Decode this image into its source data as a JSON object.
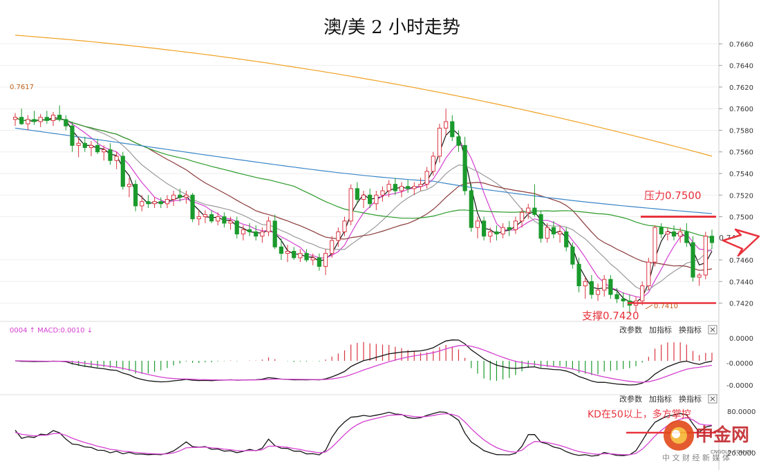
{
  "chart_data": [
    {
      "type": "candlestick",
      "title": "澳/美 2 小时走势",
      "y_axis": {
        "ticks": [
          "0.7660",
          "0.7640",
          "0.7620",
          "0.7600",
          "0.7580",
          "0.7560",
          "0.7540",
          "0.7520",
          "0.7500",
          "0.7460",
          "0.7440",
          "0.7420"
        ],
        "ylim": [
          0.7405,
          0.7675
        ]
      },
      "left_price_label": "0.7617",
      "annotations": {
        "resistance": {
          "label": "压力0.7500",
          "value": 0.75
        },
        "support": {
          "label": "支撑0.7420",
          "value": 0.742
        },
        "low_marker": "0.7410",
        "right_label_partial": "0.74"
      },
      "candles": [
        [
          0.759,
          0.7596,
          0.7584,
          0.7592
        ],
        [
          0.7592,
          0.76,
          0.7585,
          0.7586
        ],
        [
          0.7586,
          0.7594,
          0.758,
          0.759
        ],
        [
          0.759,
          0.7598,
          0.7585,
          0.7588
        ],
        [
          0.7588,
          0.7595,
          0.7583,
          0.7592
        ],
        [
          0.7592,
          0.7598,
          0.7586,
          0.7589
        ],
        [
          0.7589,
          0.7597,
          0.7584,
          0.7594
        ],
        [
          0.7594,
          0.7603,
          0.7588,
          0.759
        ],
        [
          0.759,
          0.7594,
          0.758,
          0.7584
        ],
        [
          0.7584,
          0.7588,
          0.756,
          0.7566
        ],
        [
          0.7566,
          0.7574,
          0.7555,
          0.7568
        ],
        [
          0.7568,
          0.7574,
          0.756,
          0.7564
        ],
        [
          0.7564,
          0.757,
          0.7556,
          0.7566
        ],
        [
          0.7566,
          0.7572,
          0.7558,
          0.756
        ],
        [
          0.756,
          0.7566,
          0.7552,
          0.7562
        ],
        [
          0.7562,
          0.7568,
          0.7548,
          0.7552
        ],
        [
          0.7552,
          0.756,
          0.7544,
          0.7556
        ],
        [
          0.7556,
          0.756,
          0.7525,
          0.7528
        ],
        [
          0.7528,
          0.7536,
          0.7518,
          0.753
        ],
        [
          0.753,
          0.7534,
          0.7505,
          0.751
        ],
        [
          0.751,
          0.752,
          0.7505,
          0.7514
        ],
        [
          0.7514,
          0.752,
          0.7508,
          0.7512
        ],
        [
          0.7512,
          0.7518,
          0.7508,
          0.7514
        ],
        [
          0.7514,
          0.7518,
          0.7508,
          0.7512
        ],
        [
          0.7512,
          0.752,
          0.7508,
          0.7516
        ],
        [
          0.7516,
          0.7524,
          0.751,
          0.752
        ],
        [
          0.752,
          0.7526,
          0.7514,
          0.7518
        ],
        [
          0.7518,
          0.7524,
          0.7512,
          0.752
        ],
        [
          0.752,
          0.7522,
          0.7495,
          0.7498
        ],
        [
          0.7498,
          0.7506,
          0.7492,
          0.75
        ],
        [
          0.75,
          0.7506,
          0.7494,
          0.7502
        ],
        [
          0.7502,
          0.7506,
          0.7494,
          0.7496
        ],
        [
          0.7496,
          0.7504,
          0.7492,
          0.75
        ],
        [
          0.75,
          0.7504,
          0.749,
          0.7494
        ],
        [
          0.7494,
          0.75,
          0.7488,
          0.7496
        ],
        [
          0.7496,
          0.75,
          0.748,
          0.7484
        ],
        [
          0.7484,
          0.7492,
          0.7478,
          0.7488
        ],
        [
          0.7488,
          0.7494,
          0.7482,
          0.7486
        ],
        [
          0.7486,
          0.7492,
          0.7478,
          0.7482
        ],
        [
          0.7482,
          0.749,
          0.7476,
          0.7486
        ],
        [
          0.7486,
          0.75,
          0.7482,
          0.7496
        ],
        [
          0.7496,
          0.7502,
          0.747,
          0.7472
        ],
        [
          0.7472,
          0.748,
          0.746,
          0.7466
        ],
        [
          0.7466,
          0.7474,
          0.7458,
          0.7468
        ],
        [
          0.7468,
          0.7472,
          0.746,
          0.7462
        ],
        [
          0.7462,
          0.747,
          0.7458,
          0.7466
        ],
        [
          0.7466,
          0.747,
          0.7458,
          0.746
        ],
        [
          0.746,
          0.7466,
          0.7455,
          0.7462
        ],
        [
          0.7462,
          0.7466,
          0.745,
          0.7454
        ],
        [
          0.7454,
          0.747,
          0.7446,
          0.7466
        ],
        [
          0.7466,
          0.7482,
          0.7462,
          0.7478
        ],
        [
          0.7478,
          0.749,
          0.7472,
          0.7486
        ],
        [
          0.7486,
          0.75,
          0.7482,
          0.7496
        ],
        [
          0.7496,
          0.753,
          0.7492,
          0.7526
        ],
        [
          0.7526,
          0.7532,
          0.7512,
          0.7516
        ],
        [
          0.7516,
          0.7524,
          0.7508,
          0.752
        ],
        [
          0.752,
          0.7526,
          0.7508,
          0.7512
        ],
        [
          0.7512,
          0.7524,
          0.7506,
          0.752
        ],
        [
          0.752,
          0.7528,
          0.7514,
          0.7524
        ],
        [
          0.7524,
          0.7534,
          0.7518,
          0.753
        ],
        [
          0.753,
          0.7536,
          0.752,
          0.7524
        ],
        [
          0.7524,
          0.7532,
          0.7518,
          0.7528
        ],
        [
          0.7528,
          0.7534,
          0.7522,
          0.7526
        ],
        [
          0.7526,
          0.7532,
          0.752,
          0.7528
        ],
        [
          0.7528,
          0.7536,
          0.7524,
          0.753
        ],
        [
          0.753,
          0.7546,
          0.7526,
          0.7542
        ],
        [
          0.7542,
          0.756,
          0.7538,
          0.7556
        ],
        [
          0.7556,
          0.7586,
          0.755,
          0.7582
        ],
        [
          0.7582,
          0.76,
          0.7575,
          0.7588
        ],
        [
          0.7588,
          0.7594,
          0.757,
          0.7574
        ],
        [
          0.7574,
          0.758,
          0.756,
          0.7566
        ],
        [
          0.7566,
          0.7574,
          0.752,
          0.7524
        ],
        [
          0.7524,
          0.753,
          0.7486,
          0.749
        ],
        [
          0.749,
          0.75,
          0.748,
          0.7496
        ],
        [
          0.7496,
          0.75,
          0.7478,
          0.7482
        ],
        [
          0.7482,
          0.749,
          0.7476,
          0.7486
        ],
        [
          0.7486,
          0.7492,
          0.7478,
          0.7484
        ],
        [
          0.7484,
          0.7494,
          0.748,
          0.749
        ],
        [
          0.749,
          0.7496,
          0.7482,
          0.7488
        ],
        [
          0.7488,
          0.75,
          0.7484,
          0.7496
        ],
        [
          0.7496,
          0.7508,
          0.749,
          0.7504
        ],
        [
          0.7504,
          0.7512,
          0.7498,
          0.7508
        ],
        [
          0.7508,
          0.753,
          0.75,
          0.7502
        ],
        [
          0.7502,
          0.7506,
          0.7476,
          0.748
        ],
        [
          0.748,
          0.7494,
          0.7476,
          0.749
        ],
        [
          0.749,
          0.7496,
          0.748,
          0.7484
        ],
        [
          0.7484,
          0.7492,
          0.7476,
          0.7486
        ],
        [
          0.7486,
          0.749,
          0.7468,
          0.7472
        ],
        [
          0.7472,
          0.7476,
          0.7452,
          0.7456
        ],
        [
          0.7456,
          0.7462,
          0.743,
          0.7436
        ],
        [
          0.7436,
          0.7444,
          0.7424,
          0.744
        ],
        [
          0.744,
          0.7446,
          0.7424,
          0.7428
        ],
        [
          0.7428,
          0.7438,
          0.7422,
          0.7432
        ],
        [
          0.7432,
          0.7446,
          0.7426,
          0.7442
        ],
        [
          0.7442,
          0.7446,
          0.7424,
          0.7428
        ],
        [
          0.7428,
          0.7434,
          0.742,
          0.7424
        ],
        [
          0.7424,
          0.743,
          0.7416,
          0.7422
        ],
        [
          0.7422,
          0.7428,
          0.741,
          0.7418
        ],
        [
          0.7418,
          0.7426,
          0.7412,
          0.7422
        ],
        [
          0.7422,
          0.744,
          0.7418,
          0.7436
        ],
        [
          0.7436,
          0.7462,
          0.7432,
          0.7458
        ],
        [
          0.7458,
          0.7492,
          0.7454,
          0.749
        ],
        [
          0.749,
          0.7494,
          0.748,
          0.7484
        ],
        [
          0.7484,
          0.749,
          0.7478,
          0.7486
        ],
        [
          0.7486,
          0.7492,
          0.7478,
          0.7482
        ],
        [
          0.7482,
          0.749,
          0.7476,
          0.7486
        ],
        [
          0.7486,
          0.7494,
          0.7472,
          0.7476
        ],
        [
          0.7476,
          0.7482,
          0.744,
          0.7444
        ],
        [
          0.7444,
          0.7448,
          0.7436,
          0.7446
        ],
        [
          0.7446,
          0.7486,
          0.7442,
          0.7482
        ],
        [
          0.7482,
          0.7488,
          0.747,
          0.7476
        ]
      ]
    },
    {
      "type": "line",
      "title": "",
      "panel": "MACD",
      "header": "0004 ↑ MACD:0.0010 ↓",
      "buttons": [
        "改参数",
        "加指标",
        "换指标"
      ],
      "y_ticks": [
        "0.0000",
        "-0.0000",
        "-0.0000"
      ]
    },
    {
      "type": "line",
      "title": "",
      "panel": "KD",
      "buttons": [
        "改参数",
        "加指标",
        "换指标"
      ],
      "y_ticks": [
        "80.0000",
        "20.0000"
      ],
      "annotation": "KD在50以上，多方掌控"
    }
  ],
  "watermark": {
    "name": "中金网",
    "domain": "CNGOLD.COM.CN",
    "tagline": "中 文 财 经 新 媒 体"
  },
  "colors": {
    "up": "#d9333f",
    "down": "#1a9a2c",
    "ma_short": "#111111",
    "ma_magenta": "#d43fd0",
    "ma_gray": "#9a9a9a",
    "ma_brown": "#8b3a3a",
    "ma_green": "#2a9a2a",
    "ma_blue": "#3a86c8",
    "ma_orange": "#f0a020",
    "annotation_red": "#e8323c"
  }
}
